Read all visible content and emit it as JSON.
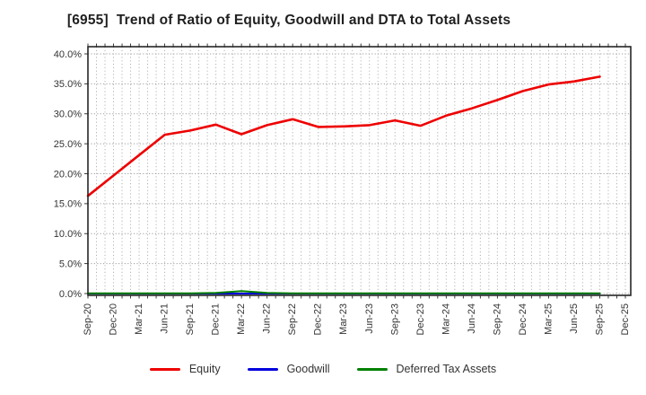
{
  "window": {
    "title": "[6955]  Trend of Ratio of Equity, Goodwill and DTA to Total Assets"
  },
  "chart_data": {
    "type": "line",
    "title": "[6955]  Trend of Ratio of Equity, Goodwill and DTA to Total Assets",
    "categories": [
      "Sep-20",
      "Dec-20",
      "Mar-21",
      "Jun-21",
      "Sep-21",
      "Dec-21",
      "Mar-22",
      "Jun-22",
      "Sep-22",
      "Dec-22",
      "Mar-23",
      "Jun-23",
      "Sep-23",
      "Dec-23",
      "Mar-24",
      "Jun-24",
      "Sep-24",
      "Dec-24",
      "Mar-25",
      "Jun-25",
      "Sep-25",
      "Dec-25"
    ],
    "series": [
      {
        "name": "Equity",
        "color": "#ee0000",
        "values": [
          16.3,
          19.7,
          23.1,
          26.5,
          27.2,
          28.2,
          26.6,
          28.1,
          29.1,
          27.8,
          27.9,
          28.1,
          28.9,
          28.0,
          29.7,
          30.9,
          32.3,
          33.8,
          34.9,
          35.4,
          36.2
        ]
      },
      {
        "name": "Goodwill",
        "color": "#0000dd",
        "values": [
          0.0,
          0.0,
          0.0,
          0.0,
          0.0,
          0.0,
          0.0,
          0.0,
          0.0,
          0.0,
          0.0,
          0.0,
          0.0,
          0.0,
          0.0,
          0.0,
          0.0,
          0.0,
          0.0,
          0.0,
          0.0
        ]
      },
      {
        "name": "Deferred Tax Assets",
        "color": "#008000",
        "values": [
          0.05,
          0.05,
          0.05,
          0.05,
          0.05,
          0.1,
          0.4,
          0.1,
          0.05,
          0.05,
          0.05,
          0.05,
          0.05,
          0.05,
          0.05,
          0.05,
          0.05,
          0.05,
          0.05,
          0.05,
          0.05
        ]
      }
    ],
    "y_ticks": [
      "0.0%",
      "5.0%",
      "10.0%",
      "15.0%",
      "20.0%",
      "25.0%",
      "30.0%",
      "35.0%",
      "40.0%"
    ],
    "y_tick_values": [
      0,
      5,
      10,
      15,
      20,
      25,
      30,
      35,
      40
    ],
    "ylim": [
      -0.3,
      41.2
    ],
    "minor_x_gridlines_per_quarter": 3,
    "grid": "dotted",
    "legend_position": "bottom",
    "colors": {
      "grid": "#b3b3b3",
      "frame": "#262626",
      "tick_label": "#333333",
      "title_text": "#1f1f1f",
      "background": "#ffffff"
    }
  },
  "legend": {
    "items": [
      {
        "label": "Equity",
        "color": "#ee0000"
      },
      {
        "label": "Goodwill",
        "color": "#0000dd"
      },
      {
        "label": "Deferred Tax Assets",
        "color": "#008000"
      }
    ]
  }
}
